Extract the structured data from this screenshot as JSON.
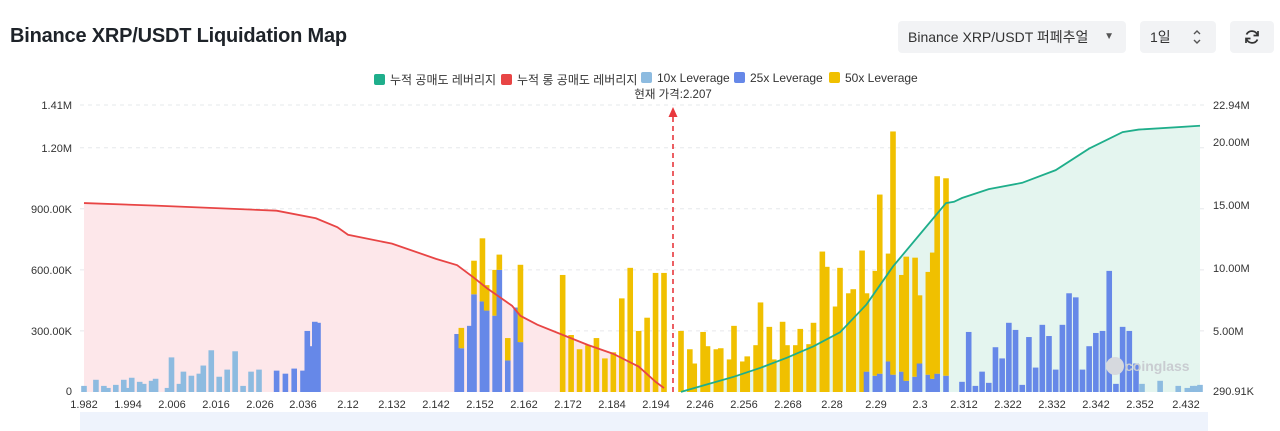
{
  "title": "Binance XRP/USDT Liquidation Map",
  "controls": {
    "pair_select": "Binance XRP/USDT 퍼페추얼",
    "pair_caret": "▼",
    "range_select": "1일"
  },
  "icons": {
    "refresh": "refresh-icon",
    "range_arrows": "chevron-up-down-icon",
    "watermark": "coinglass-logo"
  },
  "watermark": "coinglass",
  "colors": {
    "cum_short": "#1fae8b",
    "cum_long": "#e84545",
    "lev10": "#8dbbe0",
    "lev25": "#6688e8",
    "lev50": "#f0c000",
    "short_fill": "#e4f5ef",
    "long_fill": "#fde7ea"
  },
  "chart_data": {
    "type": "bar",
    "legend": [
      {
        "name": "누적 공매도 레버리지",
        "color": "#1fae8b"
      },
      {
        "name": "누적 롱 공매도 레버리지",
        "color": "#e84545"
      },
      {
        "name": "10x Leverage",
        "color": "#8dbbe0"
      },
      {
        "name": "25x Leverage",
        "color": "#6688e8"
      },
      {
        "name": "50x Leverage",
        "color": "#f0c000"
      }
    ],
    "current_price_label": "현재 가격:2.207",
    "current_price": 2.207,
    "x_tick_labels": [
      "1.982",
      "1.994",
      "2.006",
      "2.016",
      "2.026",
      "2.036",
      "2.12",
      "2.132",
      "2.142",
      "2.152",
      "2.162",
      "2.172",
      "2.184",
      "2.194",
      "2.246",
      "2.256",
      "2.268",
      "2.28",
      "2.29",
      "2.3",
      "2.312",
      "2.322",
      "2.332",
      "2.342",
      "2.352",
      "2.432"
    ],
    "y_left": {
      "ticks": [
        "0",
        "300.00K",
        "600.00K",
        "900.00K",
        "1.20M",
        "1.41M"
      ],
      "range": [
        0,
        1410000
      ]
    },
    "y_right": {
      "ticks": [
        "290.91K",
        "5.00M",
        "10.00M",
        "15.00M",
        "20.00M",
        "22.94M"
      ],
      "range": [
        290910,
        22940000
      ]
    },
    "bars": [
      {
        "x": "1.982",
        "v10": 30000
      },
      {
        "x": "1.985",
        "v10": 60000
      },
      {
        "x": "1.987",
        "v10": 30000
      },
      {
        "x": "1.988",
        "v10": 20000
      },
      {
        "x": "1.990",
        "v10": 35000
      },
      {
        "x": "1.992",
        "v10": 60000
      },
      {
        "x": "1.993",
        "v10": 20000
      },
      {
        "x": "1.994",
        "v10": 70000
      },
      {
        "x": "1.996",
        "v10": 50000
      },
      {
        "x": "1.997",
        "v10": 40000
      },
      {
        "x": "1.999",
        "v10": 55000
      },
      {
        "x": "2.000",
        "v10": 65000
      },
      {
        "x": "2.003",
        "v10": 20000
      },
      {
        "x": "2.004",
        "v10": 170000
      },
      {
        "x": "2.006",
        "v10": 40000
      },
      {
        "x": "2.007",
        "v10": 100000
      },
      {
        "x": "2.009",
        "v10": 80000
      },
      {
        "x": "2.011",
        "v10": 90000
      },
      {
        "x": "2.012",
        "v10": 130000
      },
      {
        "x": "2.014",
        "v10": 205000
      },
      {
        "x": "2.016",
        "v10": 75000
      },
      {
        "x": "2.018",
        "v10": 110000
      },
      {
        "x": "2.020",
        "v10": 200000
      },
      {
        "x": "2.022",
        "v10": 30000
      },
      {
        "x": "2.024",
        "v10": 100000
      },
      {
        "x": "2.026",
        "v10": 110000
      },
      {
        "x": "2.030",
        "v25": 105000
      },
      {
        "x": "2.032",
        "v25": 90000
      },
      {
        "x": "2.034",
        "v25": 115000
      },
      {
        "x": "2.036",
        "v25": 105000
      },
      {
        "x": "2.038",
        "v25": 65000
      },
      {
        "x": "2.040",
        "v25": 90000
      },
      {
        "x": "2.042",
        "v25": 55000
      },
      {
        "x": "2.044",
        "v25": 300000
      },
      {
        "x": "2.046",
        "v25": 75000
      },
      {
        "x": "2.048",
        "v25": 45000
      },
      {
        "x": "2.050",
        "v25": 115000
      },
      {
        "x": "2.052",
        "v25": 150000
      },
      {
        "x": "2.054",
        "v25": 225000
      },
      {
        "x": "2.056",
        "v25": 120000
      },
      {
        "x": "2.058",
        "v25": 345000
      },
      {
        "x": "2.060",
        "v25": 325000
      },
      {
        "x": "2.062",
        "v25": 275000
      },
      {
        "x": "2.064",
        "v25": 340000
      },
      {
        "x": "2.147",
        "v25": 285000
      },
      {
        "x": "2.148",
        "v25": 215000,
        "v50": 100000
      },
      {
        "x": "2.150",
        "v25": 325000
      },
      {
        "x": "2.151",
        "v25": 480000,
        "v50": 165000
      },
      {
        "x": "2.153",
        "v25": 445000,
        "v50": 310000
      },
      {
        "x": "2.154",
        "v25": 400000,
        "v50": 125000
      },
      {
        "x": "2.156",
        "v25": 375000,
        "v50": 225000
      },
      {
        "x": "2.157",
        "v25": 600000,
        "v50": 75000
      },
      {
        "x": "2.159",
        "v25": 155000,
        "v50": 110000
      },
      {
        "x": "2.161",
        "v25": 415000
      },
      {
        "x": "2.162",
        "v25": 245000,
        "v50": 380000
      },
      {
        "x": "2.172",
        "v50": 575000
      },
      {
        "x": "2.174",
        "v50": 280000
      },
      {
        "x": "2.176",
        "v50": 210000
      },
      {
        "x": "2.178",
        "v50": 230000
      },
      {
        "x": "2.180",
        "v50": 265000
      },
      {
        "x": "2.182",
        "v50": 165000
      },
      {
        "x": "2.184",
        "v50": 195000
      },
      {
        "x": "2.186",
        "v50": 460000
      },
      {
        "x": "2.188",
        "v50": 610000
      },
      {
        "x": "2.190",
        "v50": 300000
      },
      {
        "x": "2.192",
        "v50": 365000
      },
      {
        "x": "2.194",
        "v50": 585000
      },
      {
        "x": "2.196",
        "v50": 585000
      },
      {
        "x": "2.244",
        "v50": 300000
      },
      {
        "x": "2.246",
        "v50": 210000
      },
      {
        "x": "2.247",
        "v50": 140000
      },
      {
        "x": "2.249",
        "v50": 295000
      },
      {
        "x": "2.250",
        "v50": 225000
      },
      {
        "x": "2.252",
        "v50": 210000
      },
      {
        "x": "2.253",
        "v50": 215000
      },
      {
        "x": "2.255",
        "v50": 160000
      },
      {
        "x": "2.256",
        "v50": 325000
      },
      {
        "x": "2.258",
        "v50": 150000
      },
      {
        "x": "2.259",
        "v50": 175000
      },
      {
        "x": "2.261",
        "v50": 230000
      },
      {
        "x": "2.262",
        "v50": 440000
      },
      {
        "x": "2.264",
        "v50": 320000
      },
      {
        "x": "2.265",
        "v50": 160000
      },
      {
        "x": "2.267",
        "v50": 345000
      },
      {
        "x": "2.268",
        "v50": 230000
      },
      {
        "x": "2.270",
        "v50": 230000
      },
      {
        "x": "2.271",
        "v50": 310000
      },
      {
        "x": "2.273",
        "v50": 235000
      },
      {
        "x": "2.274",
        "v50": 340000
      },
      {
        "x": "2.276",
        "v50": 690000
      },
      {
        "x": "2.277",
        "v50": 615000
      },
      {
        "x": "2.279",
        "v50": 420000
      },
      {
        "x": "2.280",
        "v50": 610000
      },
      {
        "x": "2.282",
        "v50": 485000
      },
      {
        "x": "2.283",
        "v50": 505000
      },
      {
        "x": "2.285",
        "v50": 695000
      },
      {
        "x": "2.286",
        "v25": 100000,
        "v50": 385000
      },
      {
        "x": "2.288",
        "v25": 80000,
        "v50": 515000
      },
      {
        "x": "2.289",
        "v25": 90000,
        "v50": 880000
      },
      {
        "x": "2.291",
        "v25": 150000,
        "v50": 530000
      },
      {
        "x": "2.292",
        "v25": 85000,
        "v50": 1195000
      },
      {
        "x": "2.294",
        "v25": 100000,
        "v50": 475000
      },
      {
        "x": "2.295",
        "v25": 55000,
        "v50": 610000
      },
      {
        "x": "2.297",
        "v25": 75000,
        "v50": 585000
      },
      {
        "x": "2.298",
        "v25": 140000,
        "v50": 335000
      },
      {
        "x": "2.300",
        "v25": 85000,
        "v50": 505000
      },
      {
        "x": "2.301",
        "v25": 65000,
        "v50": 620000
      },
      {
        "x": "2.302",
        "v25": 90000,
        "v50": 970000
      },
      {
        "x": "2.304",
        "v25": 80000,
        "v50": 970000
      },
      {
        "x": "2.312",
        "v25": 50000
      },
      {
        "x": "2.314",
        "v25": 295000
      },
      {
        "x": "2.316",
        "v25": 30000
      },
      {
        "x": "2.318",
        "v25": 100000
      },
      {
        "x": "2.320",
        "v25": 45000
      },
      {
        "x": "2.322",
        "v25": 220000
      },
      {
        "x": "2.324",
        "v25": 165000
      },
      {
        "x": "2.326",
        "v25": 340000
      },
      {
        "x": "2.328",
        "v25": 305000
      },
      {
        "x": "2.330",
        "v25": 35000
      },
      {
        "x": "2.332",
        "v25": 270000
      },
      {
        "x": "2.334",
        "v25": 120000
      },
      {
        "x": "2.336",
        "v25": 330000
      },
      {
        "x": "2.338",
        "v25": 275000
      },
      {
        "x": "2.340",
        "v25": 110000
      },
      {
        "x": "2.342",
        "v25": 330000
      },
      {
        "x": "2.344",
        "v25": 485000
      },
      {
        "x": "2.346",
        "v25": 465000
      },
      {
        "x": "2.348",
        "v25": 110000
      },
      {
        "x": "2.350",
        "v25": 225000
      },
      {
        "x": "2.352",
        "v25": 290000
      },
      {
        "x": "2.354",
        "v25": 300000
      },
      {
        "x": "2.356",
        "v25": 595000
      },
      {
        "x": "2.358",
        "v25": 40000
      },
      {
        "x": "2.360",
        "v25": 320000
      },
      {
        "x": "2.362",
        "v25": 300000
      },
      {
        "x": "2.364",
        "v25": 140000
      },
      {
        "x": "2.400",
        "v10": 40000
      },
      {
        "x": "2.410",
        "v10": 55000
      },
      {
        "x": "2.420",
        "v10": 30000
      },
      {
        "x": "2.425",
        "v10": 20000
      },
      {
        "x": "2.428",
        "v10": 30000
      },
      {
        "x": "2.430",
        "v10": 30000
      },
      {
        "x": "2.432",
        "v10": 35000
      }
    ],
    "cumulative_long": {
      "x": [
        "1.982",
        "2.000",
        "2.030",
        "2.060",
        "2.100",
        "2.120",
        "2.132",
        "2.142",
        "2.147",
        "2.151",
        "2.154",
        "2.157",
        "2.160",
        "2.162",
        "2.166",
        "2.172",
        "2.178",
        "2.184",
        "2.190",
        "2.194",
        "2.196"
      ],
      "y": [
        15200000,
        15000000,
        14600000,
        14000000,
        13300000,
        12700000,
        12000000,
        10800000,
        10300000,
        9300000,
        8500000,
        7800000,
        7100000,
        6300000,
        5600000,
        4800000,
        4000000,
        3300000,
        2300000,
        1100000,
        600000
      ]
    },
    "cumulative_short": {
      "x": [
        "2.244",
        "2.250",
        "2.256",
        "2.262",
        "2.268",
        "2.274",
        "2.280",
        "2.286",
        "2.292",
        "2.298",
        "2.304",
        "2.308",
        "2.312",
        "2.320",
        "2.330",
        "2.340",
        "2.350",
        "2.360",
        "2.380",
        "2.432"
      ],
      "y": [
        300000,
        900000,
        1500000,
        2200000,
        3000000,
        3900000,
        5000000,
        7200000,
        10200000,
        12700000,
        15200000,
        15300000,
        15600000,
        16300000,
        16800000,
        17800000,
        19500000,
        20800000,
        21000000,
        21300000
      ]
    }
  }
}
